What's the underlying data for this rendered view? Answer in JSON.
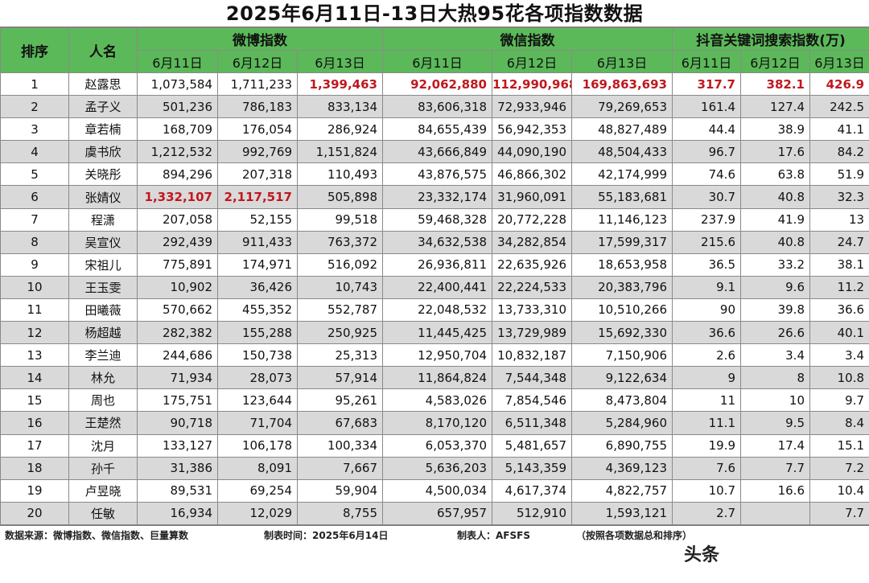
{
  "title": "2025年6月11日-13日大热95花各项指数数据",
  "headers": {
    "rank": "排序",
    "name": "人名",
    "groups": [
      "微博指数",
      "微信指数",
      "抖音关键词搜索指数(万)"
    ],
    "dates": [
      "6月11日",
      "6月12日",
      "6月13日",
      "6月11日",
      "6月12日",
      "6月13日",
      "6月11日",
      "6月12日",
      "6月13日"
    ]
  },
  "rows": [
    {
      "rank": "1",
      "name": "赵露思",
      "values": [
        "1,073,584",
        "1,711,233",
        "1,399,463",
        "92,062,880",
        "112,990,968",
        "169,863,693",
        "317.7",
        "382.1",
        "426.9"
      ],
      "highlight": [
        2,
        3,
        4,
        5,
        6,
        7,
        8
      ]
    },
    {
      "rank": "2",
      "name": "孟子义",
      "values": [
        "501,236",
        "786,183",
        "833,134",
        "83,606,318",
        "72,933,946",
        "79,269,653",
        "161.4",
        "127.4",
        "242.5"
      ],
      "highlight": []
    },
    {
      "rank": "3",
      "name": "章若楠",
      "values": [
        "168,709",
        "176,054",
        "286,924",
        "84,655,439",
        "56,942,353",
        "48,827,489",
        "44.4",
        "38.9",
        "41.1"
      ],
      "highlight": []
    },
    {
      "rank": "4",
      "name": "虞书欣",
      "values": [
        "1,212,532",
        "992,769",
        "1,151,824",
        "43,666,849",
        "44,090,190",
        "48,504,433",
        "96.7",
        "17.6",
        "84.2"
      ],
      "highlight": []
    },
    {
      "rank": "5",
      "name": "关晓彤",
      "values": [
        "894,296",
        "207,318",
        "110,493",
        "43,876,575",
        "46,866,302",
        "42,174,999",
        "74.6",
        "63.8",
        "51.9"
      ],
      "highlight": []
    },
    {
      "rank": "6",
      "name": "张婧仪",
      "values": [
        "1,332,107",
        "2,117,517",
        "505,898",
        "23,332,174",
        "31,960,091",
        "55,183,681",
        "30.7",
        "40.8",
        "32.3"
      ],
      "highlight": [
        0,
        1
      ]
    },
    {
      "rank": "7",
      "name": "程潇",
      "values": [
        "207,058",
        "52,155",
        "99,518",
        "59,468,328",
        "20,772,228",
        "11,146,123",
        "237.9",
        "41.9",
        "13"
      ],
      "highlight": []
    },
    {
      "rank": "8",
      "name": "吴宣仪",
      "values": [
        "292,439",
        "911,433",
        "763,372",
        "34,632,538",
        "34,282,854",
        "17,599,317",
        "215.6",
        "40.8",
        "24.7"
      ],
      "highlight": []
    },
    {
      "rank": "9",
      "name": "宋祖儿",
      "values": [
        "775,891",
        "174,971",
        "516,092",
        "26,936,811",
        "22,635,926",
        "18,653,958",
        "36.5",
        "33.2",
        "38.1"
      ],
      "highlight": []
    },
    {
      "rank": "10",
      "name": "王玉雯",
      "values": [
        "10,902",
        "36,426",
        "10,743",
        "22,400,441",
        "22,224,533",
        "20,383,796",
        "9.1",
        "9.6",
        "11.2"
      ],
      "highlight": []
    },
    {
      "rank": "11",
      "name": "田曦薇",
      "values": [
        "570,662",
        "455,352",
        "552,787",
        "22,048,532",
        "13,733,310",
        "10,510,266",
        "90",
        "39.8",
        "36.6"
      ],
      "highlight": []
    },
    {
      "rank": "12",
      "name": "杨超越",
      "values": [
        "282,382",
        "155,288",
        "250,925",
        "11,445,425",
        "13,729,989",
        "15,692,330",
        "36.6",
        "26.6",
        "40.1"
      ],
      "highlight": []
    },
    {
      "rank": "13",
      "name": "李兰迪",
      "values": [
        "244,686",
        "150,738",
        "25,313",
        "12,950,704",
        "10,832,187",
        "7,150,906",
        "2.6",
        "3.4",
        "3.4"
      ],
      "highlight": []
    },
    {
      "rank": "14",
      "name": "林允",
      "values": [
        "71,934",
        "28,073",
        "57,914",
        "11,864,824",
        "7,544,348",
        "9,122,634",
        "9",
        "8",
        "10.8"
      ],
      "highlight": []
    },
    {
      "rank": "15",
      "name": "周也",
      "values": [
        "175,751",
        "123,644",
        "95,261",
        "4,583,026",
        "7,854,546",
        "8,473,804",
        "11",
        "10",
        "9.7"
      ],
      "highlight": []
    },
    {
      "rank": "16",
      "name": "王楚然",
      "values": [
        "90,718",
        "71,704",
        "67,683",
        "8,170,120",
        "6,511,348",
        "5,284,960",
        "11.1",
        "9.5",
        "8.4"
      ],
      "highlight": []
    },
    {
      "rank": "17",
      "name": "沈月",
      "values": [
        "133,127",
        "106,178",
        "100,334",
        "6,053,370",
        "5,481,657",
        "6,890,755",
        "19.9",
        "17.4",
        "15.1"
      ],
      "highlight": []
    },
    {
      "rank": "18",
      "name": "孙千",
      "values": [
        "31,386",
        "8,091",
        "7,667",
        "5,636,203",
        "5,143,359",
        "4,369,123",
        "7.6",
        "7.7",
        "7.2"
      ],
      "highlight": []
    },
    {
      "rank": "19",
      "name": "卢昱晓",
      "values": [
        "89,531",
        "69,254",
        "59,904",
        "4,500,034",
        "4,617,374",
        "4,822,757",
        "10.7",
        "16.6",
        "10.4"
      ],
      "highlight": []
    },
    {
      "rank": "20",
      "name": "任敏",
      "values": [
        "16,934",
        "12,029",
        "8,755",
        "657,957",
        "512,910",
        "1,593,121",
        "2.7",
        "",
        "7.7"
      ],
      "highlight": []
    }
  ],
  "footer": {
    "source": "数据来源：微博指数、微信指数、巨量算数",
    "made_time": "制表时间：2025年6月14日",
    "maker": "制表人：AFSFS",
    "note": "（按照各项数据总和排序）"
  },
  "watermark": "头条"
}
